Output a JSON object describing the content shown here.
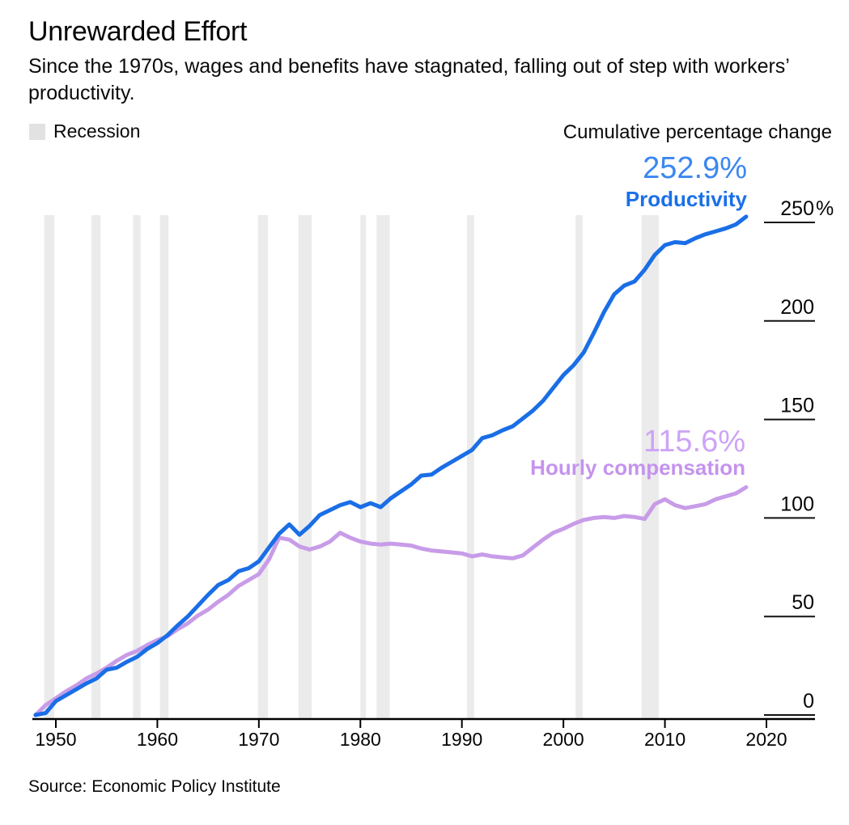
{
  "header": {
    "title": "Unrewarded Effort",
    "subtitle": "Since the 1970s, wages and benefits have stagnated, falling out of step with workers’ productivity."
  },
  "legend": {
    "recession_label": "Recession",
    "axis_note": "Cumulative percentage change"
  },
  "annotations": {
    "productivity_value": "252.9%",
    "productivity_label": "Productivity",
    "compensation_value": "115.6%",
    "compensation_label": "Hourly compensation"
  },
  "source": "Source: Economic Policy Institute",
  "colors": {
    "productivity_line": "#1a6ee6",
    "productivity_value_text": "#3b87f2",
    "productivity_label_text": "#1a70e8",
    "compensation_line": "#c89ce8",
    "compensation_value_text": "#cda4f5",
    "compensation_label_text": "#c593ee",
    "recession_band": "#ebebeb",
    "legend_swatch": "#e2e2e2",
    "axis_text": "#050505",
    "axis_line": "#111111"
  },
  "chart_data": {
    "type": "line",
    "title": "Unrewarded Effort",
    "ylabel": "Cumulative percentage change",
    "legend_position": "right-of-lines",
    "grid": false,
    "xlim": [
      1948,
      2020
    ],
    "ylim": [
      0,
      260
    ],
    "x_ticks": [
      1950,
      1960,
      1970,
      1980,
      1990,
      2000,
      2010,
      2020
    ],
    "y_ticks": [
      {
        "value": 250,
        "label": "250",
        "suffix": "%"
      },
      {
        "value": 200,
        "label": "200",
        "suffix": ""
      },
      {
        "value": 150,
        "label": "150",
        "suffix": ""
      },
      {
        "value": 100,
        "label": "100",
        "suffix": ""
      },
      {
        "value": 50,
        "label": "50",
        "suffix": ""
      },
      {
        "value": 0,
        "label": "0",
        "suffix": ""
      }
    ],
    "x": [
      1948,
      1949,
      1950,
      1951,
      1952,
      1953,
      1954,
      1955,
      1956,
      1957,
      1958,
      1959,
      1960,
      1961,
      1962,
      1963,
      1964,
      1965,
      1966,
      1967,
      1968,
      1969,
      1970,
      1971,
      1972,
      1973,
      1974,
      1975,
      1976,
      1977,
      1978,
      1979,
      1980,
      1981,
      1982,
      1983,
      1984,
      1985,
      1986,
      1987,
      1988,
      1989,
      1990,
      1991,
      1992,
      1993,
      1994,
      1995,
      1996,
      1997,
      1998,
      1999,
      2000,
      2001,
      2002,
      2003,
      2004,
      2005,
      2006,
      2007,
      2008,
      2009,
      2010,
      2011,
      2012,
      2013,
      2014,
      2015,
      2016,
      2017,
      2018
    ],
    "series": [
      {
        "name": "Productivity",
        "end_value_label": "252.9%",
        "values": [
          0,
          1,
          7,
          10,
          13,
          16,
          18.5,
          23,
          24,
          27,
          29.5,
          33.5,
          36.5,
          40.5,
          45.5,
          50,
          55.5,
          61,
          66,
          68.5,
          73,
          74.5,
          78,
          85,
          92,
          96.7,
          91.5,
          96,
          101.5,
          104,
          106.5,
          108.1,
          105.5,
          107.5,
          105.5,
          110,
          113.5,
          117,
          121.5,
          122,
          125.5,
          128.5,
          131.5,
          134.5,
          140.5,
          142,
          144.5,
          146.5,
          150.5,
          154.5,
          159.5,
          166,
          172.5,
          177.5,
          184,
          194,
          204.5,
          213.5,
          218,
          220,
          226,
          233.5,
          238.5,
          240,
          239.5,
          242,
          244,
          245.5,
          247,
          249,
          252.9
        ]
      },
      {
        "name": "Hourly compensation",
        "end_value_label": "115.6%",
        "values": [
          0,
          5,
          8.5,
          12,
          15,
          18.5,
          21,
          24,
          27.5,
          30.5,
          32.5,
          35.5,
          38,
          40,
          43.5,
          46.5,
          50.5,
          53.5,
          57.5,
          61,
          65.5,
          68.5,
          71.5,
          79,
          90,
          89,
          85.5,
          84,
          85.5,
          88,
          92.5,
          90,
          88,
          87,
          86.5,
          87,
          86.5,
          86,
          84.5,
          83.5,
          83,
          82.5,
          82,
          80.5,
          81.5,
          80.5,
          80,
          79.5,
          81,
          85,
          89,
          92.5,
          94.5,
          97,
          99,
          100,
          100.5,
          100,
          101,
          100.5,
          99.5,
          107,
          109.5,
          106.5,
          105,
          106,
          107,
          109.5,
          111,
          112.5,
          115.6
        ]
      }
    ],
    "recession_bands_years": [
      [
        1948.85,
        1949.85
      ],
      [
        1953.5,
        1954.4
      ],
      [
        1957.6,
        1958.35
      ],
      [
        1960.25,
        1961.1
      ],
      [
        1969.9,
        1970.9
      ],
      [
        1973.9,
        1975.2
      ],
      [
        1980.0,
        1980.55
      ],
      [
        1981.6,
        1982.9
      ],
      [
        1990.5,
        1991.2
      ],
      [
        2001.2,
        2001.9
      ],
      [
        2007.7,
        2009.4
      ]
    ]
  }
}
